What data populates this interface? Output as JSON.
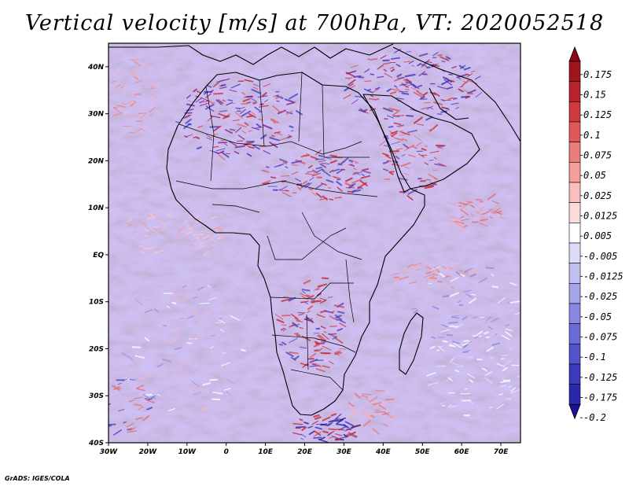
{
  "title": "Vertical velocity [m/s] at 700hPa, VT: 2020052518",
  "credit": "GrADS: IGES/COLA",
  "map": {
    "lon_range": [
      -30,
      75
    ],
    "lat_range": [
      -40,
      45
    ],
    "lon_ticks": [
      {
        "value": -30,
        "label": "30W"
      },
      {
        "value": -20,
        "label": "20W"
      },
      {
        "value": -10,
        "label": "10W"
      },
      {
        "value": 0,
        "label": "0"
      },
      {
        "value": 10,
        "label": "10E"
      },
      {
        "value": 20,
        "label": "20E"
      },
      {
        "value": 30,
        "label": "30E"
      },
      {
        "value": 40,
        "label": "40E"
      },
      {
        "value": 50,
        "label": "50E"
      },
      {
        "value": 60,
        "label": "60E"
      },
      {
        "value": 70,
        "label": "70E"
      }
    ],
    "lat_ticks": [
      {
        "value": 40,
        "label": "40N"
      },
      {
        "value": 30,
        "label": "30N"
      },
      {
        "value": 20,
        "label": "20N"
      },
      {
        "value": 10,
        "label": "10N"
      },
      {
        "value": 0,
        "label": "EQ"
      },
      {
        "value": -10,
        "label": "10S"
      },
      {
        "value": -20,
        "label": "20S"
      },
      {
        "value": -30,
        "label": "30S"
      },
      {
        "value": -40,
        "label": "40S"
      }
    ]
  },
  "colorbar": {
    "levels": [
      {
        "label": "0.175",
        "color": "#a0151c"
      },
      {
        "label": "0.15",
        "color": "#b8232b"
      },
      {
        "label": "0.125",
        "color": "#cf3a3f"
      },
      {
        "label": "0.1",
        "color": "#e0585a"
      },
      {
        "label": "0.075",
        "color": "#ec7c7c"
      },
      {
        "label": "0.05",
        "color": "#f49e9d"
      },
      {
        "label": "0.025",
        "color": "#f9bfbe"
      },
      {
        "label": "0.0125",
        "color": "#fcdcdb"
      },
      {
        "label": "0.005",
        "color": "#ffffff"
      },
      {
        "label": "-0.005",
        "color": "#dcdcf7"
      },
      {
        "label": "-0.0125",
        "color": "#c0c0f0"
      },
      {
        "label": "-0.025",
        "color": "#a4a4e9"
      },
      {
        "label": "-0.05",
        "color": "#8888e1"
      },
      {
        "label": "-0.075",
        "color": "#6c6cd8"
      },
      {
        "label": "-0.1",
        "color": "#5252cc"
      },
      {
        "label": "-0.125",
        "color": "#3a3abd"
      },
      {
        "label": "-0.175",
        "color": "#2828ab"
      },
      {
        "label": "-0.2",
        "color": ""
      }
    ],
    "top_color": "#8b0b14",
    "bottom_color": "#1d1296"
  }
}
